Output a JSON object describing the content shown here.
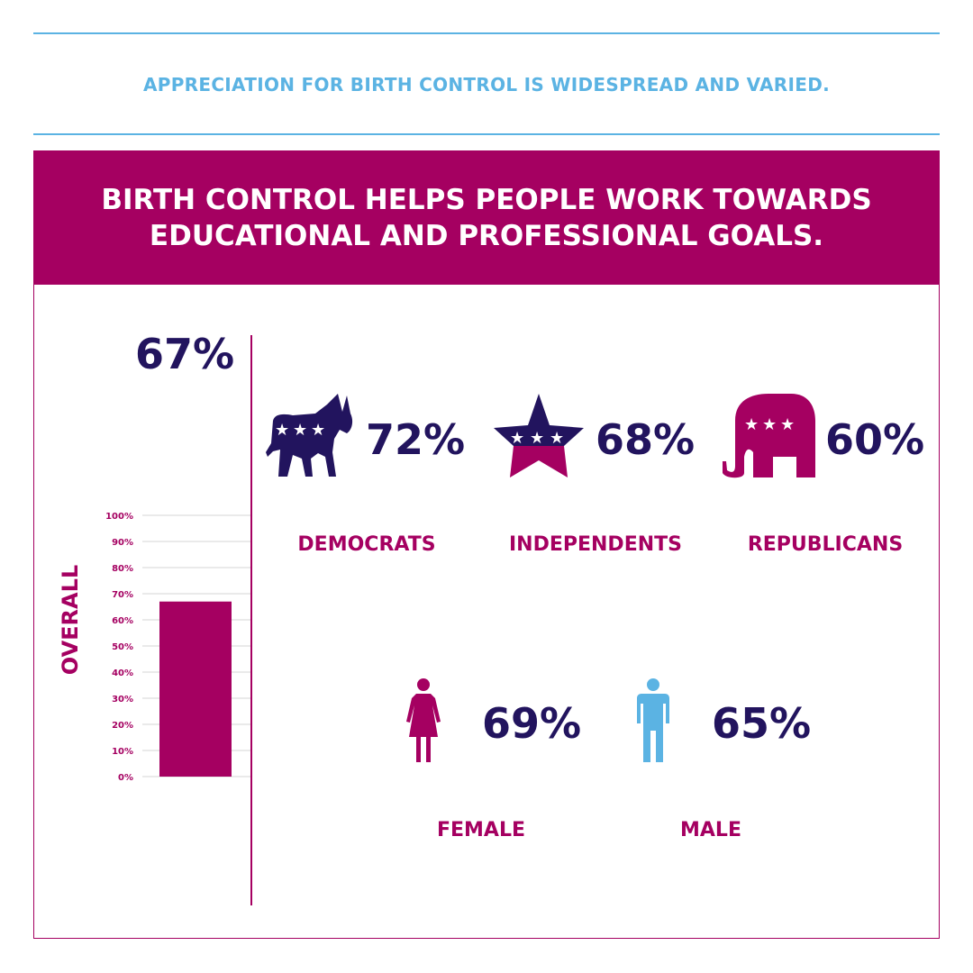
{
  "subtitle": "APPRECIATION FOR BIRTH CONTROL IS WIDESPREAD AND VARIED.",
  "header": {
    "line1": "BIRTH CONTROL HELPS PEOPLE WORK TOWARDS",
    "line2": "EDUCATIONAL AND PROFESSIONAL GOALS."
  },
  "colors": {
    "magenta": "#a50061",
    "navy": "#22145e",
    "blue": "#5bb3e3"
  },
  "overall": {
    "value_label": "67%"
  },
  "chart_data": {
    "type": "bar",
    "categories": [
      "OVERALL"
    ],
    "values": [
      67
    ],
    "ylabel": "OVERALL",
    "ylim": [
      0,
      100
    ],
    "yticks": [
      "0%",
      "10%",
      "20%",
      "30%",
      "40%",
      "50%",
      "60%",
      "70%",
      "80%",
      "90%",
      "100%"
    ],
    "grid": true
  },
  "groups": [
    {
      "label": "DEMOCRATS",
      "value": "72%",
      "icon": "donkey-icon"
    },
    {
      "label": "INDEPENDENTS",
      "value": "68%",
      "icon": "star-icon"
    },
    {
      "label": "REPUBLICANS",
      "value": "60%",
      "icon": "elephant-icon"
    },
    {
      "label": "FEMALE",
      "value": "69%",
      "icon": "female-icon"
    },
    {
      "label": "MALE",
      "value": "65%",
      "icon": "male-icon"
    }
  ]
}
